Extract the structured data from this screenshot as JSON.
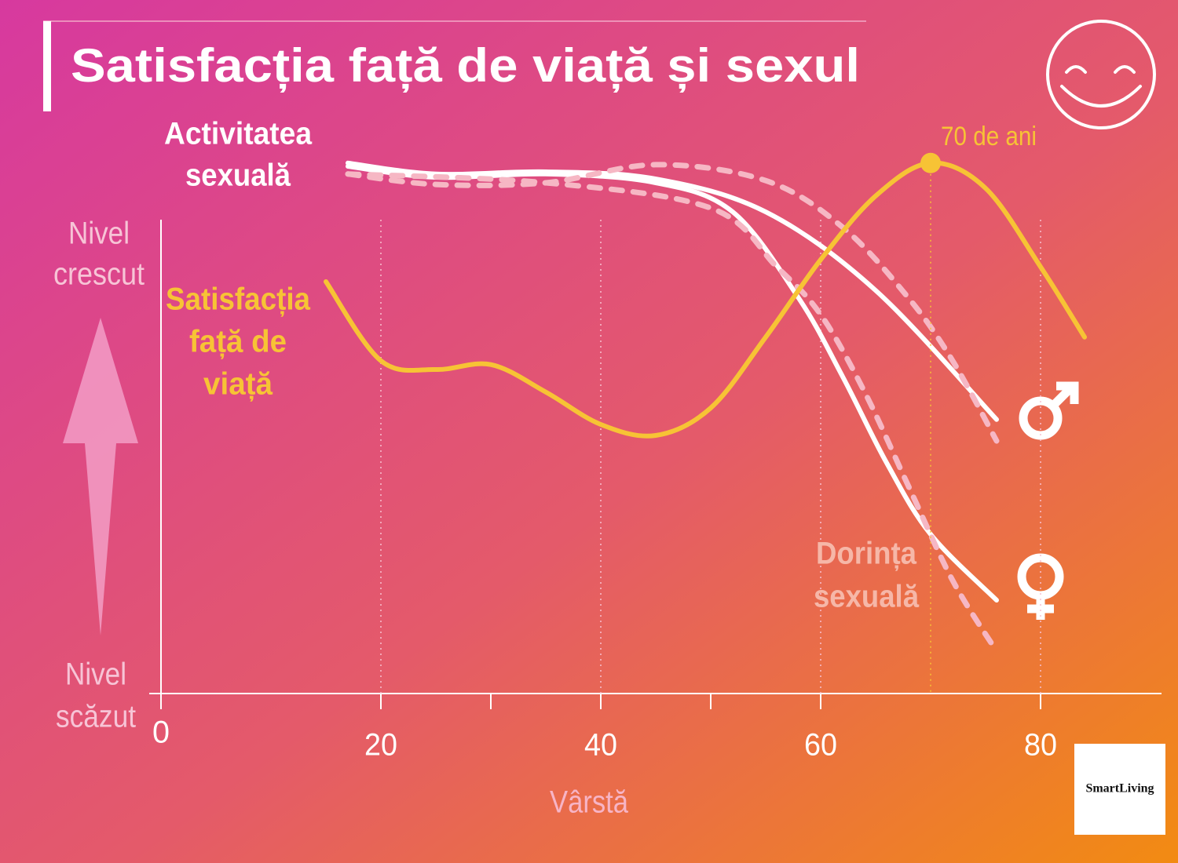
{
  "chart_data": {
    "type": "line",
    "title": "Satisfacția față de viață și sexul",
    "xlabel": "Vârstă",
    "ylabel_top": [
      "Nivel",
      "crescut"
    ],
    "ylabel_bottom": [
      "Nivel",
      "scăzut"
    ],
    "activity_label": [
      "Activitatea",
      "sexuală"
    ],
    "satisfaction_label": [
      "Satisfacția",
      "față de",
      "viață"
    ],
    "desire_label": [
      "Dorința",
      "sexuală"
    ],
    "annotation": {
      "text": "70 de ani",
      "x": 70,
      "y": 96.6
    },
    "logo": "SmartLiving",
    "xlim": [
      0,
      91
    ],
    "ylim": [
      0,
      100
    ],
    "xticks": [
      0,
      20,
      40,
      60,
      80
    ],
    "xminor": [
      30,
      50
    ],
    "xgrid": [
      20,
      40,
      60,
      80
    ],
    "series": [
      {
        "color": "#ffffff",
        "dashed": false,
        "x": [
          17,
          25,
          35,
          45,
          55,
          65,
          76
        ],
        "values": [
          96.6,
          94.6,
          95,
          93.7,
          87.7,
          73.4,
          49.9
        ]
      },
      {
        "color": "#ffffff",
        "dashed": false,
        "x": [
          17,
          25,
          35,
          45,
          52,
          58,
          62,
          66,
          70,
          76
        ],
        "values": [
          96,
          94,
          94.6,
          93,
          87.7,
          72,
          57.7,
          42,
          29,
          17
        ]
      },
      {
        "color": "#f6b7c4",
        "dashed": true,
        "x": [
          17,
          25,
          35,
          45,
          55,
          62,
          68,
          72,
          76
        ],
        "values": [
          94.6,
          92.7,
          93,
          96.3,
          93.4,
          84.9,
          72,
          60.6,
          46
        ]
      },
      {
        "color": "#f6b7c4",
        "dashed": true,
        "x": [
          17,
          35,
          50,
          56,
          60,
          64,
          68,
          72,
          76
        ],
        "values": [
          94.6,
          93,
          88.4,
          77.7,
          69,
          54.9,
          37.7,
          20.6,
          7.7
        ]
      },
      {
        "color": "#f7c335",
        "dashed": false,
        "x": [
          15,
          20,
          25,
          30,
          35,
          40,
          45,
          50,
          55,
          60,
          65,
          70,
          75,
          80,
          84
        ],
        "values": [
          75,
          60.6,
          59,
          59.9,
          54.9,
          49,
          47,
          52,
          64.9,
          79,
          90.6,
          96.6,
          92,
          77.7,
          64.9
        ]
      }
    ]
  }
}
